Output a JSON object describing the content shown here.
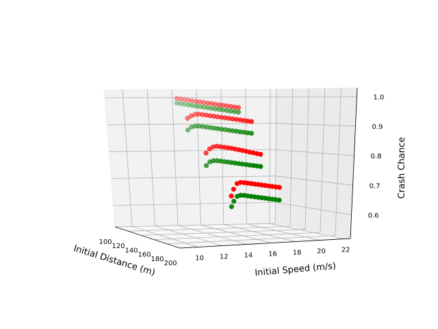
{
  "chart_data": {
    "type": "scatter",
    "projection": "3d",
    "xlabel": "Initial Speed (m/s)",
    "ylabel": "Initial Distance (m)",
    "zlabel": "Crash Chance",
    "x_ticks": [
      "10",
      "12",
      "14",
      "16",
      "18",
      "20",
      "22"
    ],
    "y_ticks": [
      "100",
      "120",
      "140",
      "160",
      "180",
      "200"
    ],
    "z_ticks": [
      "0.6",
      "0.7",
      "0.8",
      "0.9",
      "1.0"
    ],
    "xlim": [
      8.5,
      22.5
    ],
    "ylim": [
      100,
      200
    ],
    "zlim": [
      0.52,
      1.03
    ],
    "grid": true,
    "series": [
      {
        "color": "#ff0000",
        "points": [
          {
            "x": 8.5,
            "y": 200,
            "z": 1.0
          },
          {
            "x": 8.8,
            "y": 200,
            "z": 0.998
          },
          {
            "x": 9.1,
            "y": 200,
            "z": 0.996
          },
          {
            "x": 9.4,
            "y": 200,
            "z": 0.994
          },
          {
            "x": 9.7,
            "y": 200,
            "z": 0.992
          },
          {
            "x": 10.0,
            "y": 200,
            "z": 0.99
          },
          {
            "x": 10.3,
            "y": 200,
            "z": 0.988
          },
          {
            "x": 10.6,
            "y": 200,
            "z": 0.986
          },
          {
            "x": 10.9,
            "y": 200,
            "z": 0.984
          },
          {
            "x": 11.2,
            "y": 200,
            "z": 0.982
          },
          {
            "x": 11.5,
            "y": 200,
            "z": 0.98
          },
          {
            "x": 11.8,
            "y": 200,
            "z": 0.978
          },
          {
            "x": 12.1,
            "y": 200,
            "z": 0.976
          },
          {
            "x": 12.4,
            "y": 200,
            "z": 0.974
          },
          {
            "x": 12.7,
            "y": 200,
            "z": 0.972
          },
          {
            "x": 13.0,
            "y": 200,
            "z": 0.97
          },
          {
            "x": 13.3,
            "y": 200,
            "z": 0.968
          },
          {
            "x": 11.6,
            "y": 160,
            "z": 0.93
          },
          {
            "x": 11.9,
            "y": 160,
            "z": 0.938
          },
          {
            "x": 12.2,
            "y": 160,
            "z": 0.943
          },
          {
            "x": 12.5,
            "y": 160,
            "z": 0.944
          },
          {
            "x": 12.8,
            "y": 160,
            "z": 0.942
          },
          {
            "x": 13.1,
            "y": 160,
            "z": 0.94
          },
          {
            "x": 13.4,
            "y": 160,
            "z": 0.938
          },
          {
            "x": 13.7,
            "y": 160,
            "z": 0.936
          },
          {
            "x": 14.0,
            "y": 160,
            "z": 0.934
          },
          {
            "x": 14.3,
            "y": 160,
            "z": 0.932
          },
          {
            "x": 14.6,
            "y": 160,
            "z": 0.93
          },
          {
            "x": 14.9,
            "y": 160,
            "z": 0.928
          },
          {
            "x": 15.2,
            "y": 160,
            "z": 0.926
          },
          {
            "x": 15.5,
            "y": 160,
            "z": 0.924
          },
          {
            "x": 15.8,
            "y": 160,
            "z": 0.922
          },
          {
            "x": 16.1,
            "y": 160,
            "z": 0.92
          },
          {
            "x": 16.4,
            "y": 160,
            "z": 0.918
          },
          {
            "x": 16.7,
            "y": 160,
            "z": 0.916
          },
          {
            "x": 14.8,
            "y": 130,
            "z": 0.8
          },
          {
            "x": 15.1,
            "y": 130,
            "z": 0.815
          },
          {
            "x": 15.4,
            "y": 130,
            "z": 0.822
          },
          {
            "x": 15.7,
            "y": 130,
            "z": 0.824
          },
          {
            "x": 16.0,
            "y": 130,
            "z": 0.822
          },
          {
            "x": 16.3,
            "y": 130,
            "z": 0.82
          },
          {
            "x": 16.6,
            "y": 130,
            "z": 0.818
          },
          {
            "x": 16.9,
            "y": 130,
            "z": 0.816
          },
          {
            "x": 17.2,
            "y": 130,
            "z": 0.813
          },
          {
            "x": 17.5,
            "y": 130,
            "z": 0.81
          },
          {
            "x": 17.8,
            "y": 130,
            "z": 0.807
          },
          {
            "x": 18.1,
            "y": 130,
            "z": 0.804
          },
          {
            "x": 18.4,
            "y": 130,
            "z": 0.801
          },
          {
            "x": 18.7,
            "y": 130,
            "z": 0.798
          },
          {
            "x": 19.0,
            "y": 130,
            "z": 0.795
          },
          {
            "x": 19.3,
            "y": 130,
            "z": 0.792
          },
          {
            "x": 18.4,
            "y": 105,
            "z": 0.63
          },
          {
            "x": 18.6,
            "y": 105,
            "z": 0.655
          },
          {
            "x": 18.9,
            "y": 105,
            "z": 0.676
          },
          {
            "x": 19.2,
            "y": 105,
            "z": 0.68
          },
          {
            "x": 19.5,
            "y": 105,
            "z": 0.679
          },
          {
            "x": 19.8,
            "y": 105,
            "z": 0.677
          },
          {
            "x": 20.1,
            "y": 105,
            "z": 0.675
          },
          {
            "x": 20.4,
            "y": 105,
            "z": 0.673
          },
          {
            "x": 20.7,
            "y": 105,
            "z": 0.671
          },
          {
            "x": 21.0,
            "y": 105,
            "z": 0.669
          },
          {
            "x": 21.3,
            "y": 105,
            "z": 0.667
          },
          {
            "x": 21.6,
            "y": 105,
            "z": 0.665
          },
          {
            "x": 21.9,
            "y": 105,
            "z": 0.663
          },
          {
            "x": 22.2,
            "y": 105,
            "z": 0.661
          },
          {
            "x": 22.5,
            "y": 105,
            "z": 0.659
          }
        ]
      },
      {
        "color": "#008000",
        "points": [
          {
            "x": 8.5,
            "y": 200,
            "z": 0.985
          },
          {
            "x": 8.8,
            "y": 200,
            "z": 0.983
          },
          {
            "x": 9.1,
            "y": 200,
            "z": 0.981
          },
          {
            "x": 9.4,
            "y": 200,
            "z": 0.979
          },
          {
            "x": 9.7,
            "y": 200,
            "z": 0.977
          },
          {
            "x": 10.0,
            "y": 200,
            "z": 0.975
          },
          {
            "x": 10.3,
            "y": 200,
            "z": 0.973
          },
          {
            "x": 10.6,
            "y": 200,
            "z": 0.971
          },
          {
            "x": 10.9,
            "y": 200,
            "z": 0.969
          },
          {
            "x": 11.2,
            "y": 200,
            "z": 0.967
          },
          {
            "x": 11.5,
            "y": 200,
            "z": 0.965
          },
          {
            "x": 11.8,
            "y": 200,
            "z": 0.963
          },
          {
            "x": 12.1,
            "y": 200,
            "z": 0.961
          },
          {
            "x": 12.4,
            "y": 200,
            "z": 0.959
          },
          {
            "x": 12.7,
            "y": 200,
            "z": 0.957
          },
          {
            "x": 13.0,
            "y": 200,
            "z": 0.955
          },
          {
            "x": 13.3,
            "y": 200,
            "z": 0.953
          },
          {
            "x": 11.6,
            "y": 160,
            "z": 0.89
          },
          {
            "x": 11.9,
            "y": 160,
            "z": 0.9
          },
          {
            "x": 12.2,
            "y": 160,
            "z": 0.903
          },
          {
            "x": 12.5,
            "y": 160,
            "z": 0.903
          },
          {
            "x": 12.8,
            "y": 160,
            "z": 0.901
          },
          {
            "x": 13.1,
            "y": 160,
            "z": 0.899
          },
          {
            "x": 13.4,
            "y": 160,
            "z": 0.897
          },
          {
            "x": 13.7,
            "y": 160,
            "z": 0.895
          },
          {
            "x": 14.0,
            "y": 160,
            "z": 0.893
          },
          {
            "x": 14.3,
            "y": 160,
            "z": 0.891
          },
          {
            "x": 14.6,
            "y": 160,
            "z": 0.889
          },
          {
            "x": 14.9,
            "y": 160,
            "z": 0.887
          },
          {
            "x": 15.2,
            "y": 160,
            "z": 0.885
          },
          {
            "x": 15.5,
            "y": 160,
            "z": 0.883
          },
          {
            "x": 15.8,
            "y": 160,
            "z": 0.881
          },
          {
            "x": 16.1,
            "y": 160,
            "z": 0.879
          },
          {
            "x": 16.4,
            "y": 160,
            "z": 0.877
          },
          {
            "x": 16.7,
            "y": 160,
            "z": 0.875
          },
          {
            "x": 14.8,
            "y": 130,
            "z": 0.755
          },
          {
            "x": 15.1,
            "y": 130,
            "z": 0.768
          },
          {
            "x": 15.4,
            "y": 130,
            "z": 0.772
          },
          {
            "x": 15.7,
            "y": 130,
            "z": 0.772
          },
          {
            "x": 16.0,
            "y": 130,
            "z": 0.77
          },
          {
            "x": 16.3,
            "y": 130,
            "z": 0.768
          },
          {
            "x": 16.6,
            "y": 130,
            "z": 0.766
          },
          {
            "x": 16.9,
            "y": 130,
            "z": 0.764
          },
          {
            "x": 17.2,
            "y": 130,
            "z": 0.762
          },
          {
            "x": 17.5,
            "y": 130,
            "z": 0.76
          },
          {
            "x": 17.8,
            "y": 130,
            "z": 0.758
          },
          {
            "x": 18.1,
            "y": 130,
            "z": 0.756
          },
          {
            "x": 18.4,
            "y": 130,
            "z": 0.754
          },
          {
            "x": 18.7,
            "y": 130,
            "z": 0.752
          },
          {
            "x": 19.0,
            "y": 130,
            "z": 0.75
          },
          {
            "x": 19.3,
            "y": 130,
            "z": 0.748
          },
          {
            "x": 18.4,
            "y": 105,
            "z": 0.59
          },
          {
            "x": 18.6,
            "y": 105,
            "z": 0.61
          },
          {
            "x": 18.9,
            "y": 105,
            "z": 0.628
          },
          {
            "x": 19.2,
            "y": 105,
            "z": 0.632
          },
          {
            "x": 19.5,
            "y": 105,
            "z": 0.631
          },
          {
            "x": 19.8,
            "y": 105,
            "z": 0.629
          },
          {
            "x": 20.1,
            "y": 105,
            "z": 0.627
          },
          {
            "x": 20.4,
            "y": 105,
            "z": 0.625
          },
          {
            "x": 20.7,
            "y": 105,
            "z": 0.623
          },
          {
            "x": 21.0,
            "y": 105,
            "z": 0.621
          },
          {
            "x": 21.3,
            "y": 105,
            "z": 0.619
          },
          {
            "x": 21.6,
            "y": 105,
            "z": 0.617
          },
          {
            "x": 21.9,
            "y": 105,
            "z": 0.615
          },
          {
            "x": 22.2,
            "y": 105,
            "z": 0.613
          },
          {
            "x": 22.5,
            "y": 105,
            "z": 0.611
          }
        ]
      }
    ]
  }
}
